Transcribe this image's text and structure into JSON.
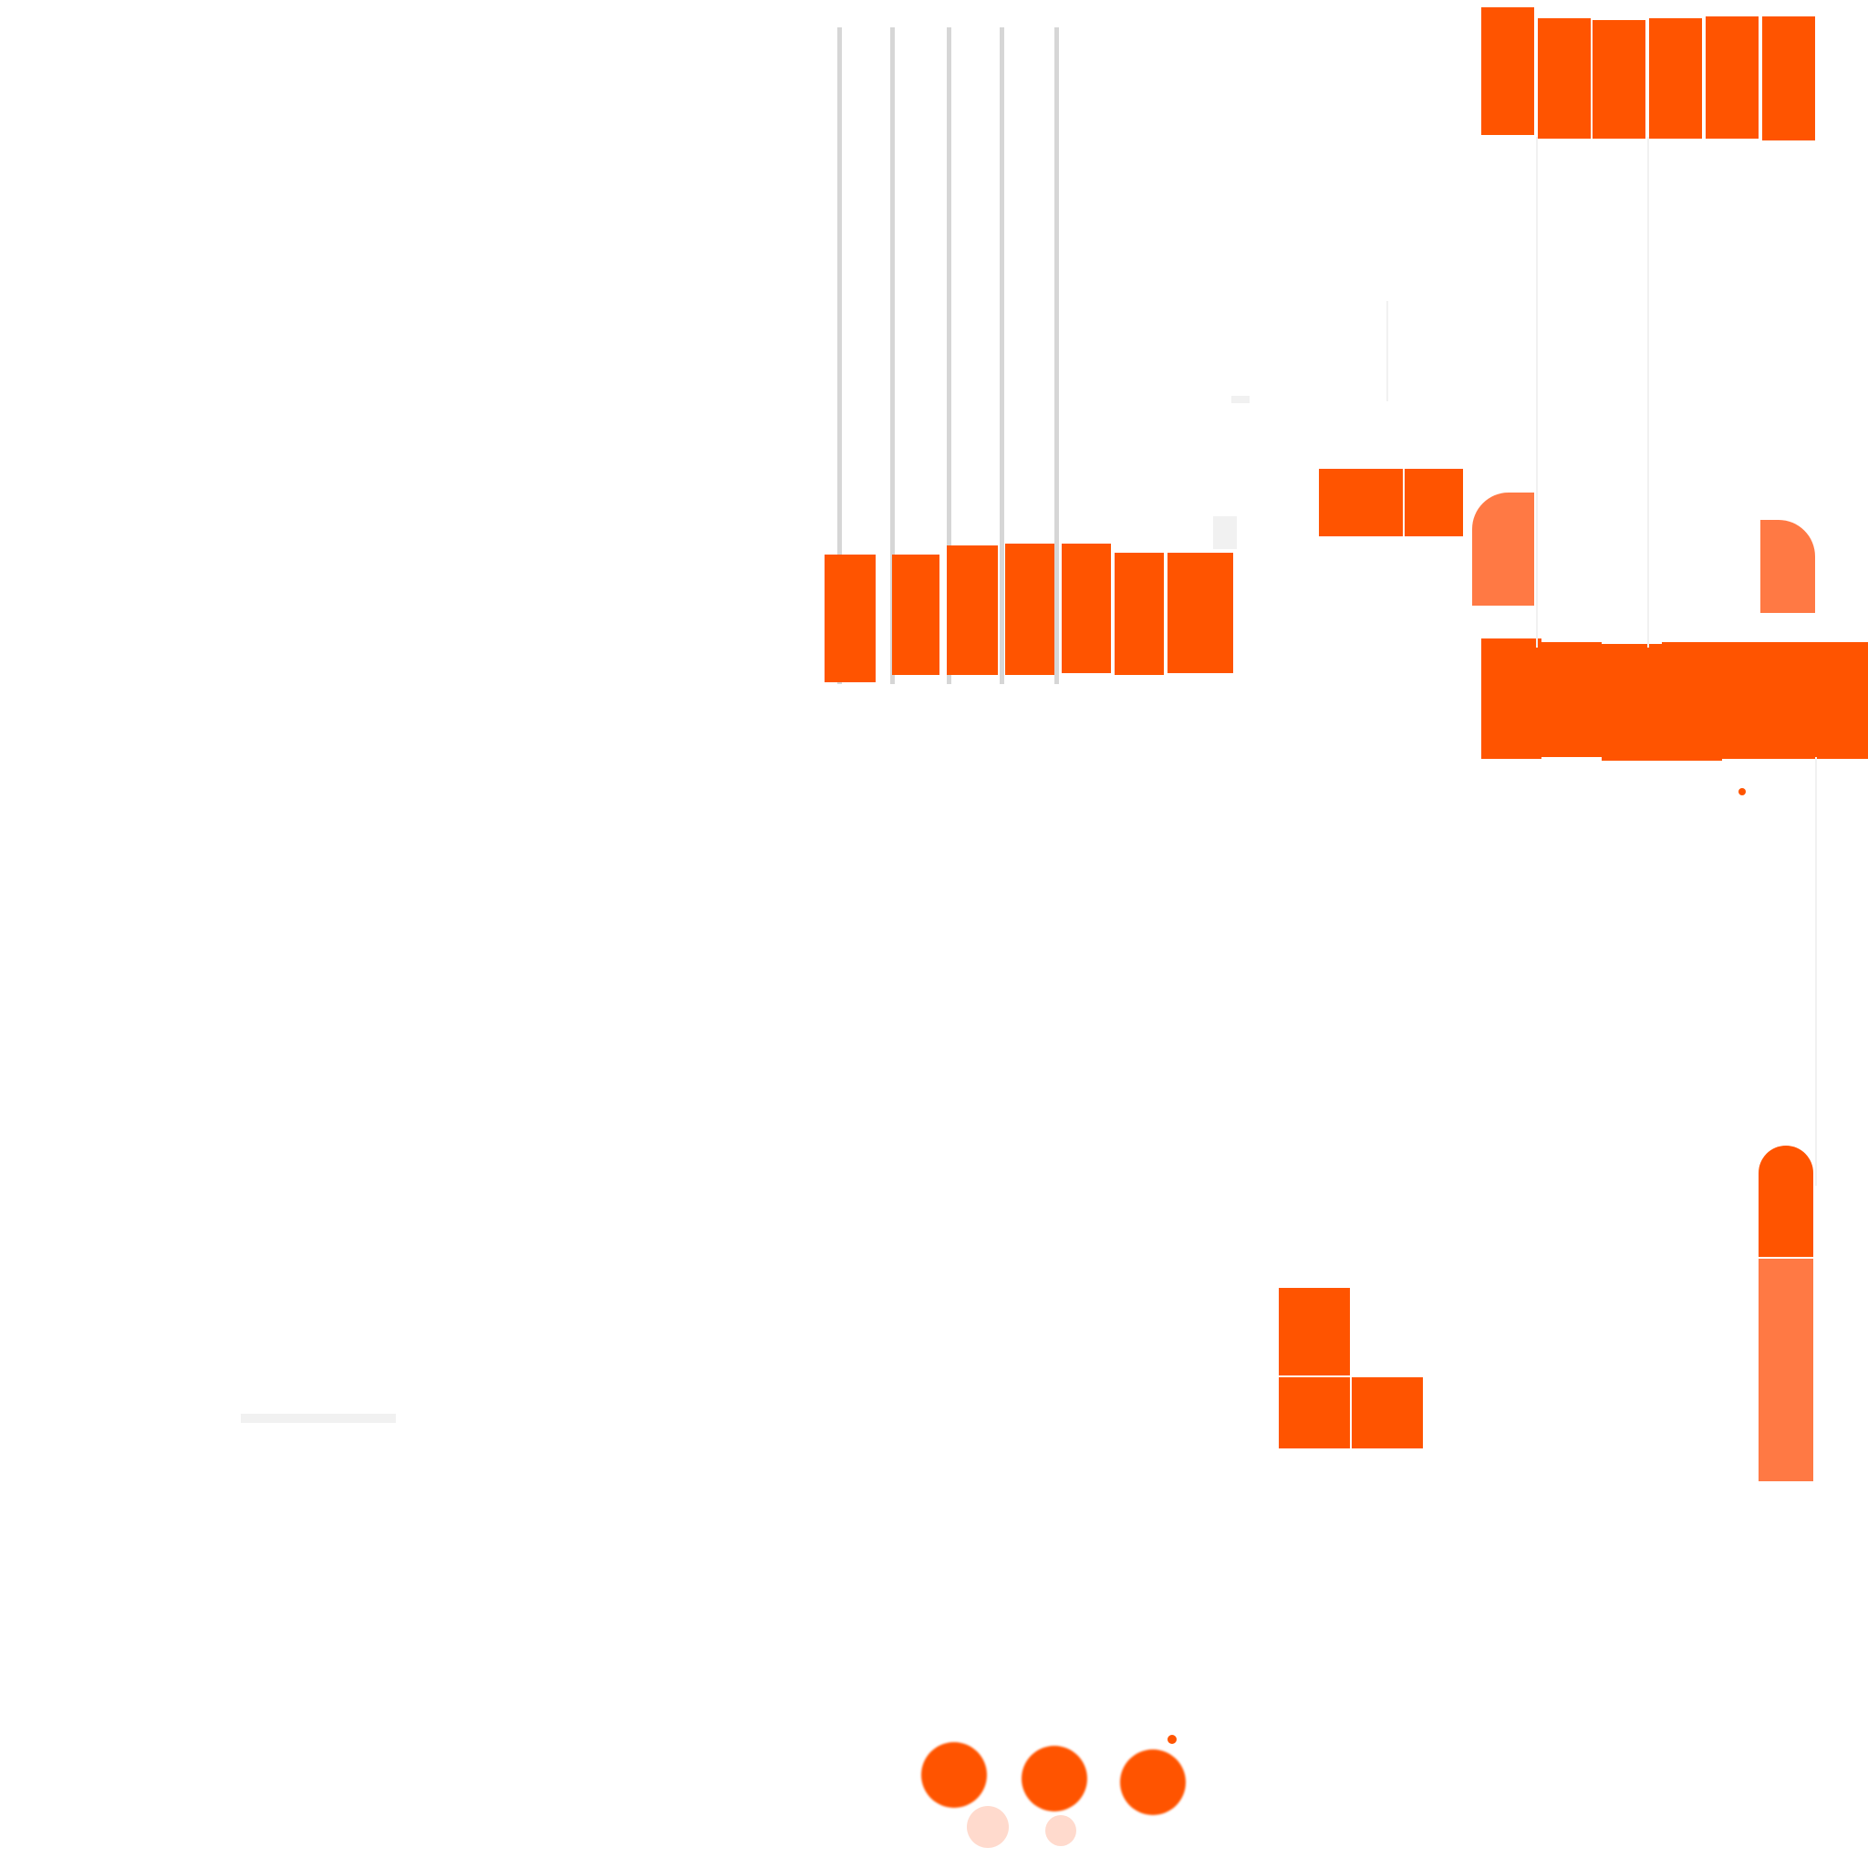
{
  "palette": {
    "background": "#ffffff",
    "accent": "#ff5400",
    "accent_soft": "#ff6a30",
    "line": "#d6d6d6",
    "pale": "#ffd4c4"
  },
  "icons": [
    "cable-icon",
    "bar-block-icon",
    "dot-icon"
  ]
}
